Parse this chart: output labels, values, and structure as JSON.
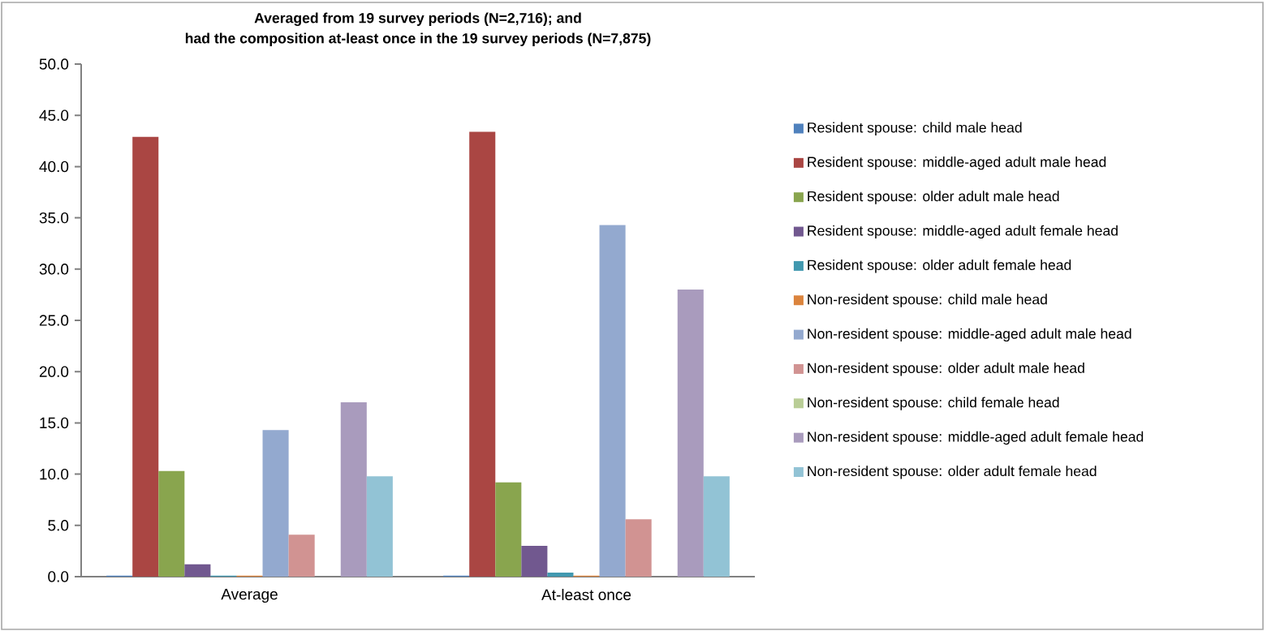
{
  "chart_data": {
    "type": "bar",
    "title": "Averaged from 19 survey periods (N=2,716); and",
    "subtitle": "had the composition at-least once in the 19 survey periods (N=7,875)",
    "categories": [
      "Average",
      "At-least once"
    ],
    "series": [
      {
        "name": "Resident spouse: child male head",
        "color": "#4f81bd",
        "values": [
          0.1,
          0.1
        ]
      },
      {
        "name": "Resident spouse: middle-aged adult male head",
        "color": "#aa4643",
        "values": [
          42.9,
          43.4
        ]
      },
      {
        "name": "Resident spouse: older adult male head",
        "color": "#89a54e",
        "values": [
          10.3,
          9.2
        ]
      },
      {
        "name": "Resident spouse: middle-aged adult female head",
        "color": "#71588f",
        "values": [
          1.2,
          3.0
        ]
      },
      {
        "name": "Resident spouse: older adult female head",
        "color": "#4198af",
        "values": [
          0.1,
          0.4
        ]
      },
      {
        "name": "Non-resident spouse: child male head",
        "color": "#db843d",
        "values": [
          0.1,
          0.1
        ]
      },
      {
        "name": "Non-resident spouse: middle-aged adult male head",
        "color": "#93a9cf",
        "values": [
          14.3,
          34.3
        ]
      },
      {
        "name": "Non-resident spouse: older adult male head",
        "color": "#d19392",
        "values": [
          4.1,
          5.6
        ]
      },
      {
        "name": "Non-resident spouse: child female head",
        "color": "#b9cd96",
        "values": [
          0.0,
          0.0
        ]
      },
      {
        "name": "Non-resident spouse: middle-aged adult female head",
        "color": "#a99bbd",
        "values": [
          17.0,
          28.0
        ]
      },
      {
        "name": "Non-resident spouse: older adult female head",
        "color": "#92c3d5",
        "values": [
          9.8,
          9.8
        ]
      }
    ],
    "ylim": [
      0,
      50
    ],
    "yticks": [
      {
        "value": 0,
        "label": "0.0"
      },
      {
        "value": 5,
        "label": "5.0"
      },
      {
        "value": 10,
        "label": "10.0"
      },
      {
        "value": 15,
        "label": "15.0"
      },
      {
        "value": 20,
        "label": "20.0"
      },
      {
        "value": 25,
        "label": "25.0"
      },
      {
        "value": 30,
        "label": "30.0"
      },
      {
        "value": 35,
        "label": "35.0"
      },
      {
        "value": 40,
        "label": "40.0"
      },
      {
        "value": 45,
        "label": "45.0"
      },
      {
        "value": 50,
        "label": "50.0"
      }
    ],
    "legend": "right",
    "grid": false
  }
}
